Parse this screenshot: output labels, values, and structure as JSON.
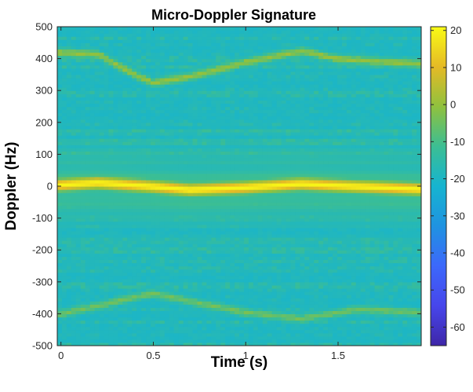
{
  "chart_data": {
    "type": "heatmap",
    "title": "Micro-Doppler Signature",
    "xlabel": "Time (s)",
    "ylabel": "Doppler (Hz)",
    "xlim": [
      -0.02,
      1.95
    ],
    "ylim": [
      -500,
      500
    ],
    "xticks": [
      0,
      0.5,
      1,
      1.5
    ],
    "xtick_labels": [
      "0",
      "0.5",
      "1",
      "1.5"
    ],
    "yticks": [
      -500,
      -400,
      -300,
      -200,
      -100,
      0,
      100,
      200,
      300,
      400,
      500
    ],
    "ytick_labels": [
      "-500",
      "-400",
      "-300",
      "-200",
      "-100",
      "0",
      "100",
      "200",
      "300",
      "400",
      "500"
    ],
    "colorbar": {
      "range": [
        -65,
        21
      ],
      "ticks": [
        20,
        10,
        0,
        -10,
        -20,
        -30,
        -40,
        -50,
        -60
      ],
      "tick_labels": [
        "20",
        "10",
        "0",
        "-10",
        "-20",
        "-30",
        "-40",
        "-50",
        "-60"
      ],
      "colormap": "parula"
    },
    "background_level_db": -20,
    "features": [
      {
        "kind": "main-body-return",
        "peak_db": 20,
        "doppler_vs_time": [
          [
            0.0,
            5
          ],
          [
            0.2,
            12
          ],
          [
            0.45,
            2
          ],
          [
            0.7,
            -10
          ],
          [
            1.0,
            -3
          ],
          [
            1.3,
            8
          ],
          [
            1.6,
            0
          ],
          [
            1.95,
            -8
          ]
        ]
      },
      {
        "kind": "upper-micro-doppler",
        "peak_db": 0,
        "doppler_vs_time": [
          [
            0.0,
            420
          ],
          [
            0.2,
            415
          ],
          [
            0.4,
            350
          ],
          [
            0.5,
            325
          ],
          [
            0.7,
            345
          ],
          [
            1.0,
            390
          ],
          [
            1.3,
            425
          ],
          [
            1.5,
            400
          ],
          [
            1.95,
            385
          ]
        ]
      },
      {
        "kind": "lower-micro-doppler",
        "peak_db": -5,
        "doppler_vs_time": [
          [
            0.0,
            -400
          ],
          [
            0.3,
            -360
          ],
          [
            0.5,
            -335
          ],
          [
            0.7,
            -360
          ],
          [
            1.0,
            -395
          ],
          [
            1.3,
            -415
          ],
          [
            1.6,
            -385
          ],
          [
            1.95,
            -395
          ]
        ]
      }
    ]
  }
}
